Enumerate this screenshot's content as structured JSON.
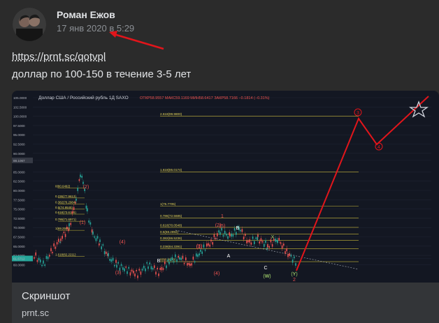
{
  "post": {
    "author": "Роман Ежов",
    "time": "17 янв 2020 в 5:29",
    "link": "https://prnt.sc/qotvpl",
    "text": "доллар по 100-150 в течение 3-5 лет"
  },
  "attachment": {
    "title": "Скриншот",
    "site": "prnt.sc"
  },
  "chart": {
    "symbol": "Доллар США / Российский рубль  1Д  SAXO",
    "ohlc": "ОТКР58.9557  МАКС59.1169  МИН58.6417  ЗАКР58.7166  −0.1814 (−0.31%)",
    "price_axis": [
      "105.0000",
      "102.5000",
      "100.0000",
      "97.5000",
      "95.0000",
      "92.5000",
      "90.0000",
      "88.1067",
      "85.0000",
      "82.5000",
      "80.0000",
      "77.5000",
      "75.0000",
      "72.5000",
      "70.0000",
      "67.5000",
      "65.0000",
      "62.5000",
      "61.6712",
      "60.0000"
    ],
    "fib_labels": [
      "2.618(99.9800)",
      "1.618(85.0174)",
      "1(75.7705)",
      "0.786(72.5685)",
      "0.618(70.0548)",
      "0.5(68.2892)",
      "0.382(66.5236)",
      "0.236(64.3391)",
      "0(60.8079)"
    ],
    "left_fib_labels": [
      "0(80.6492)",
      "0.236(77.9613)",
      "0.382(76.2984)",
      "0.5(74.9545)",
      "0.618(73.6105)",
      "0.786(71.6971)",
      "1(69.2598)",
      "1.618(62.2211)"
    ],
    "wave_labels": [
      "(2)",
      "(1)",
      "(4)",
      "(3)",
      "(2)",
      "(1)",
      "(3)",
      "(4)",
      "(5)",
      "1",
      "2",
      "3",
      "4",
      "A",
      "B",
      "C",
      "X",
      "W",
      "Y",
      "(Y)",
      "(W)",
      "B"
    ],
    "colors": {
      "up": "#26a69a",
      "down": "#ef5350",
      "fib": "#c9b93a",
      "arrow": "#e1151b"
    }
  }
}
